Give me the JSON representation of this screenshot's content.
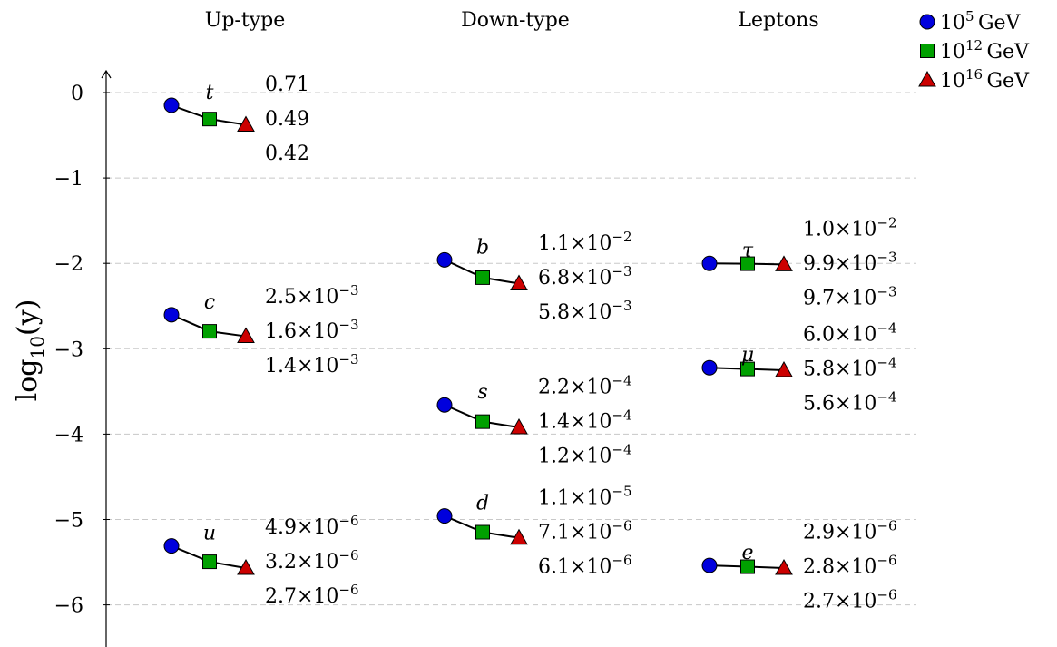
{
  "chart_data": {
    "type": "scatter",
    "ylabel": "log10(y)",
    "ylim": [
      -6.6,
      0.25
    ],
    "yticks": [
      0,
      -1,
      -2,
      -3,
      -4,
      -5,
      -6
    ],
    "ytick_labels": [
      "0",
      "−1",
      "−2",
      "−3",
      "−4",
      "−5",
      "−6"
    ],
    "grid": "horizontal dashed",
    "legend_position": "top-right",
    "legend": [
      {
        "base": "10",
        "exp": "5",
        "unit": "GeV",
        "color": "#0000dd",
        "marker": "circle"
      },
      {
        "base": "10",
        "exp": "12",
        "unit": "GeV",
        "color": "#00a000",
        "marker": "square"
      },
      {
        "base": "10",
        "exp": "16",
        "unit": "GeV",
        "color": "#cc0000",
        "marker": "triangle"
      }
    ],
    "groups": [
      {
        "title": "Up-type",
        "particles": [
          {
            "name": "t",
            "values": [
              0.71,
              0.49,
              0.42
            ],
            "log10": [
              -0.149,
              -0.31,
              -0.377
            ],
            "labels": [
              {
                "m": "0.71",
                "e": ""
              },
              {
                "m": "0.49",
                "e": ""
              },
              {
                "m": "0.42",
                "e": ""
              }
            ]
          },
          {
            "name": "c",
            "values": [
              0.0025,
              0.0016,
              0.0014
            ],
            "log10": [
              -2.602,
              -2.796,
              -2.854
            ],
            "labels": [
              {
                "m": "2.5×10",
                "e": "−3"
              },
              {
                "m": "1.6×10",
                "e": "−3"
              },
              {
                "m": "1.4×10",
                "e": "−3"
              }
            ]
          },
          {
            "name": "u",
            "values": [
              4.9e-06,
              3.2e-06,
              2.7e-06
            ],
            "log10": [
              -5.31,
              -5.495,
              -5.569
            ],
            "labels": [
              {
                "m": "4.9×10",
                "e": "−6"
              },
              {
                "m": "3.2×10",
                "e": "−6"
              },
              {
                "m": "2.7×10",
                "e": "−6"
              }
            ]
          }
        ]
      },
      {
        "title": "Down-type",
        "particles": [
          {
            "name": "b",
            "values": [
              0.011,
              0.0068,
              0.0058
            ],
            "log10": [
              -1.959,
              -2.167,
              -2.237
            ],
            "labels": [
              {
                "m": "1.1×10",
                "e": "−2"
              },
              {
                "m": "6.8×10",
                "e": "−3"
              },
              {
                "m": "5.8×10",
                "e": "−3"
              }
            ]
          },
          {
            "name": "s",
            "values": [
              0.00022,
              0.00014,
              0.00012
            ],
            "log10": [
              -3.658,
              -3.854,
              -3.921
            ],
            "labels": [
              {
                "m": "2.2×10",
                "e": "−4"
              },
              {
                "m": "1.4×10",
                "e": "−4"
              },
              {
                "m": "1.2×10",
                "e": "−4"
              }
            ]
          },
          {
            "name": "d",
            "values": [
              1.1e-05,
              7.1e-06,
              6.1e-06
            ],
            "log10": [
              -4.959,
              -5.149,
              -5.215
            ],
            "labels": [
              {
                "m": "1.1×10",
                "e": "−5"
              },
              {
                "m": "7.1×10",
                "e": "−6"
              },
              {
                "m": "6.1×10",
                "e": "−6"
              }
            ]
          }
        ]
      },
      {
        "title": "Leptons",
        "particles": [
          {
            "name": "τ",
            "values": [
              0.01,
              0.0099,
              0.0097
            ],
            "log10": [
              -2.0,
              -2.004,
              -2.013
            ],
            "labels": [
              {
                "m": "1.0×10",
                "e": "−2"
              },
              {
                "m": "9.9×10",
                "e": "−3"
              },
              {
                "m": "9.7×10",
                "e": "−3"
              }
            ]
          },
          {
            "name": "μ",
            "values": [
              0.0006,
              0.00058,
              0.00056
            ],
            "log10": [
              -3.222,
              -3.237,
              -3.252
            ],
            "labels": [
              {
                "m": "6.0×10",
                "e": "−4"
              },
              {
                "m": "5.8×10",
                "e": "−4"
              },
              {
                "m": "5.6×10",
                "e": "−4"
              }
            ]
          },
          {
            "name": "e",
            "values": [
              2.9e-06,
              2.8e-06,
              2.7e-06
            ],
            "log10": [
              -5.538,
              -5.553,
              -5.569
            ],
            "labels": [
              {
                "m": "2.9×10",
                "e": "−6"
              },
              {
                "m": "2.8×10",
                "e": "−6"
              },
              {
                "m": "2.7×10",
                "e": "−6"
              }
            ]
          }
        ]
      }
    ]
  }
}
